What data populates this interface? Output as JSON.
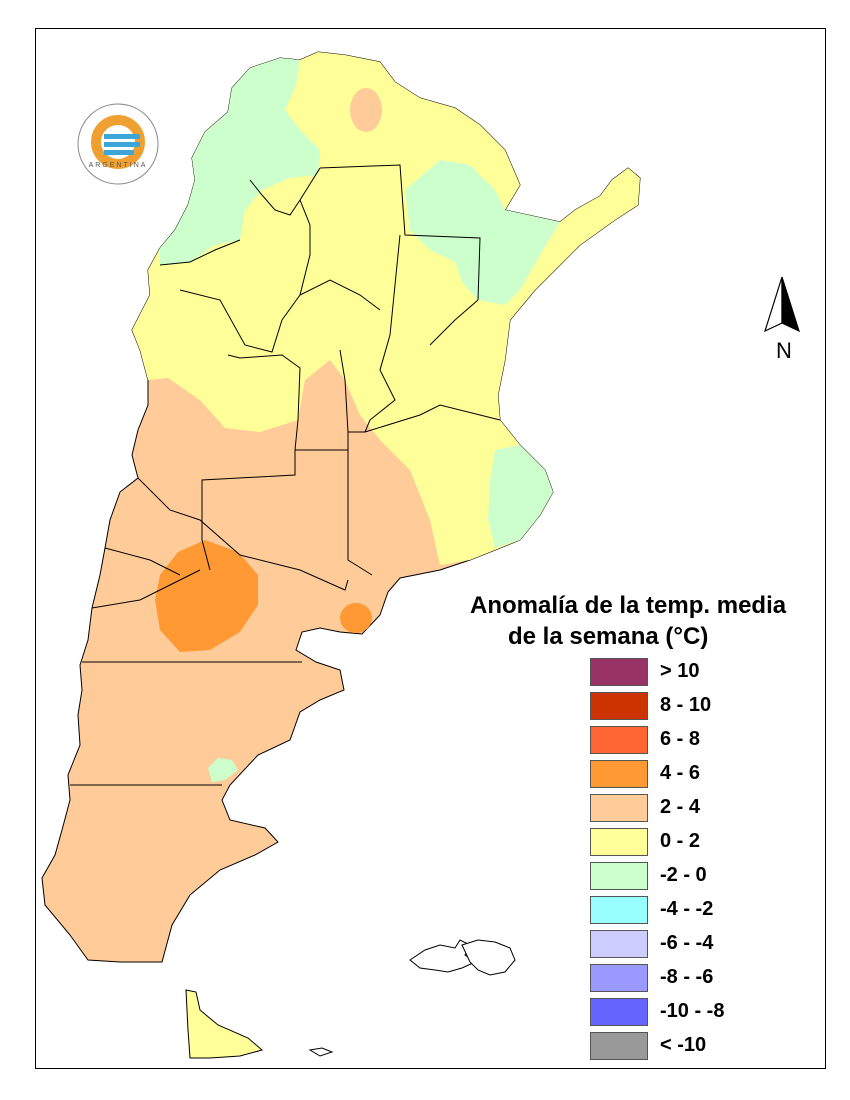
{
  "legend": {
    "title_line1": "Anomalía de la temp. media",
    "title_line2": "de la semana (°C)",
    "items": [
      {
        "label": "> 10",
        "color": "#993366"
      },
      {
        "label": "8 - 10",
        "color": "#cc3300"
      },
      {
        "label": "6 - 8",
        "color": "#ff6633"
      },
      {
        "label": "4 - 6",
        "color": "#ff9933"
      },
      {
        "label": "2 - 4",
        "color": "#ffcc99"
      },
      {
        "label": "0 - 2",
        "color": "#ffff99"
      },
      {
        "label": "-2 - 0",
        "color": "#ccffcc"
      },
      {
        "label": "-4 - -2",
        "color": "#99ffff"
      },
      {
        "label": "-6 - -4",
        "color": "#ccccff"
      },
      {
        "label": "-8 - -6",
        "color": "#9999ff"
      },
      {
        "label": "-10 - -8",
        "color": "#6666ff"
      },
      {
        "label": "< -10",
        "color": "#999999"
      }
    ]
  },
  "north_arrow": {
    "label": "N"
  },
  "logo": {
    "text": "ARGENTINA",
    "icon": "smn-logo-icon"
  }
}
